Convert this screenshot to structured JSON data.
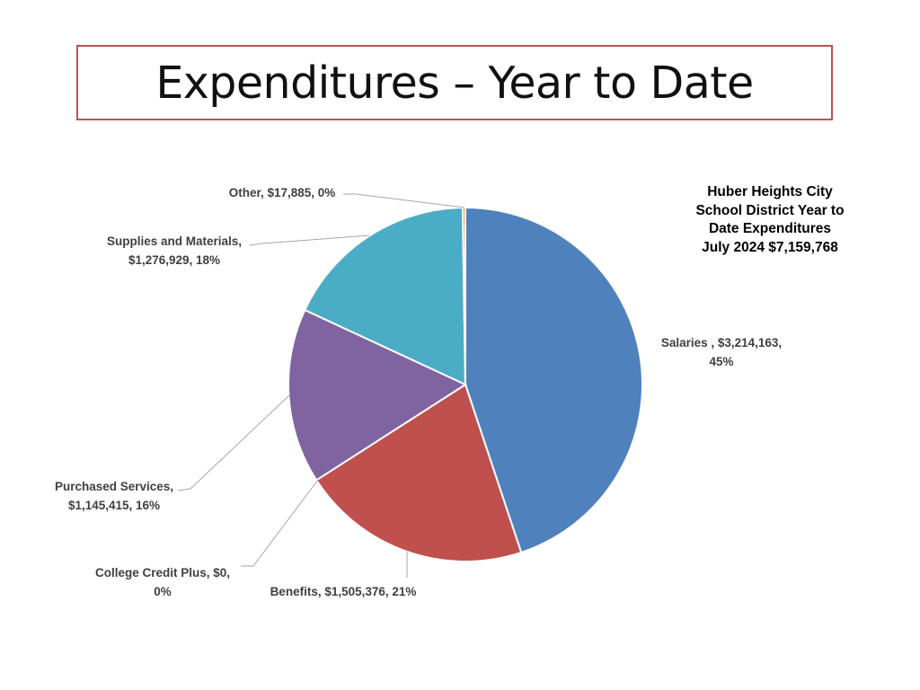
{
  "slide": {
    "title": "Expenditures – Year to Date"
  },
  "chart_data": {
    "type": "pie",
    "title_lines": [
      "Huber Heights City",
      "School District Year to",
      "Date Expenditures",
      "July 2024 $7,159,768"
    ],
    "categories": [
      "Salaries",
      "Benefits",
      "College Credit Plus",
      "Purchased Services",
      "Supplies and Materials",
      "Other"
    ],
    "values": [
      3214163,
      1505376,
      0,
      1145415,
      1276929,
      17885
    ],
    "percents": [
      45,
      21,
      0,
      16,
      18,
      0
    ],
    "labels": [
      [
        "Salaries , $3,214,163,",
        "45%"
      ],
      [
        "Benefits, $1,505,376, 21%"
      ],
      [
        "College Credit Plus, $0,",
        "0%"
      ],
      [
        "Purchased Services,",
        "$1,145,415, 16%"
      ],
      [
        "Supplies and Materials,",
        "$1,276,929, 18%"
      ],
      [
        "Other, $17,885, 0%"
      ]
    ],
    "colors": [
      "#4f81bd",
      "#c0504d",
      "#9bbb59",
      "#8064a2",
      "#4bacc6",
      "#f79646"
    ],
    "start_angle_deg": 0,
    "direction": "clockwise",
    "legend": "none"
  }
}
